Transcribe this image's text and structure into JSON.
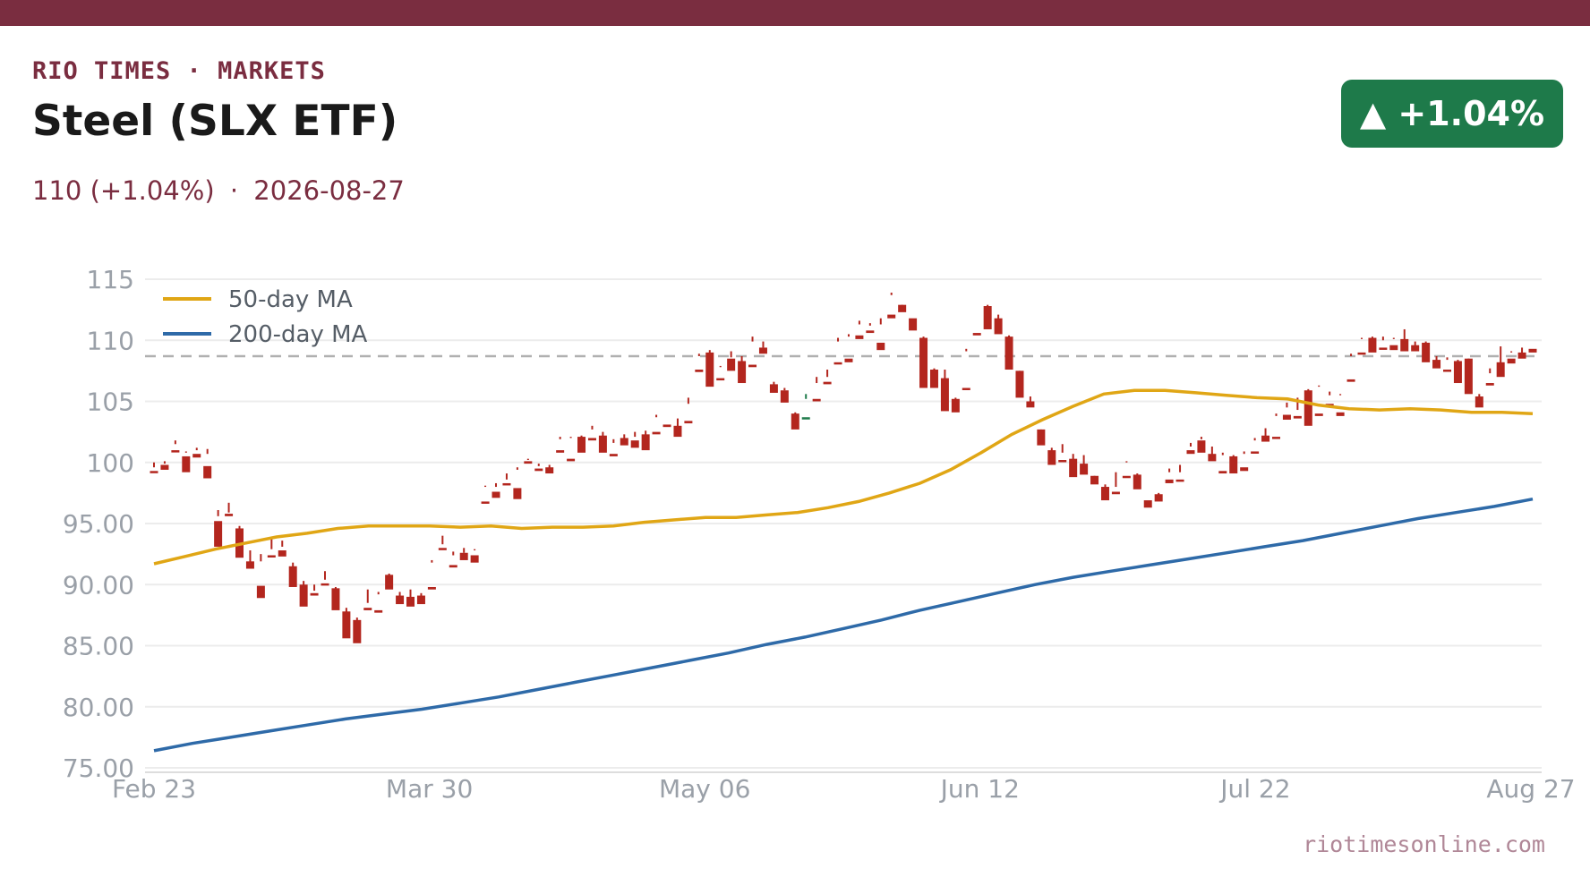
{
  "header": {
    "brand": "RIO TIMES · MARKETS",
    "title": "Steel (SLX ETF)",
    "price": "110",
    "change": "(+1.04%)",
    "separator": "·",
    "date": "2026-08-27",
    "badge": "▲ +1.04%"
  },
  "footer": {
    "source": "riotimesonline.com"
  },
  "colors": {
    "up": "#1e7a4a",
    "down": "#b3261e",
    "ma50": "#e0a615",
    "ma200": "#2e6aa8",
    "brand": "#7a2d40"
  },
  "chart_data": {
    "type": "candlestick",
    "ylim": [
      75,
      115
    ],
    "y_ticks": [
      "75.00",
      "80.00",
      "85.00",
      "90.00",
      "95.00",
      "100",
      "105",
      "110",
      "115"
    ],
    "x_ticks": [
      "Feb 23",
      "Mar 30",
      "May 06",
      "Jun 12",
      "Jul 22",
      "Aug 27"
    ],
    "reference_line": 108.7,
    "legend": [
      "50-day MA",
      "200-day MA"
    ],
    "candles": [
      [
        99.3,
        100,
        99.6,
        99.2
      ],
      [
        99.8,
        100.1,
        99.9,
        99.4
      ],
      [
        101.0,
        101.8,
        101.5,
        100.9
      ],
      [
        100.5,
        100.9,
        100.8,
        99.2
      ],
      [
        100.7,
        101.2,
        101.0,
        100.4
      ],
      [
        99.7,
        101.1,
        100.7,
        98.7
      ],
      [
        95.2,
        96.1,
        95.6,
        93.1
      ],
      [
        95.8,
        96.7,
        95.9,
        95.6
      ],
      [
        94.6,
        94.8,
        93.3,
        92.2
      ],
      [
        91.9,
        92.8,
        91.4,
        91.3
      ],
      [
        89.9,
        92.5,
        91.9,
        88.9
      ],
      [
        92.4,
        93.9,
        92.9,
        92.3
      ],
      [
        92.8,
        93.6,
        93.1,
        92.3
      ],
      [
        91.5,
        91.8,
        90.2,
        89.8
      ],
      [
        90.0,
        90.3,
        88.4,
        88.2
      ],
      [
        89.3,
        90.0,
        89.5,
        89.1
      ],
      [
        90.1,
        91.1,
        90.4,
        90.0
      ],
      [
        89.7,
        89.8,
        88.2,
        87.9
      ],
      [
        87.8,
        88.1,
        86.1,
        85.6
      ],
      [
        87.1,
        87.3,
        85.7,
        85.2
      ],
      [
        88.1,
        89.6,
        88.5,
        87.9
      ],
      [
        87.9,
        89.4,
        89.2,
        87.7
      ],
      [
        90.8,
        90.9,
        89.8,
        89.6
      ],
      [
        89.1,
        89.4,
        88.5,
        88.4
      ],
      [
        89.0,
        89.6,
        88.8,
        88.2
      ],
      [
        89.1,
        89.3,
        88.6,
        88.4
      ],
      [
        89.8,
        92.0,
        91.8,
        89.6
      ],
      [
        93.0,
        94.0,
        93.3,
        92.9
      ],
      [
        91.6,
        92.7,
        92.4,
        91.4
      ],
      [
        92.6,
        93.0,
        92.6,
        92.0
      ],
      [
        92.4,
        92.9,
        92.8,
        91.8
      ],
      [
        96.8,
        98.1,
        98.0,
        96.7
      ],
      [
        97.6,
        98.3,
        98.0,
        97.1
      ],
      [
        98.3,
        99.1,
        98.6,
        98.2
      ],
      [
        97.9,
        99.6,
        99.4,
        97.0
      ],
      [
        100.1,
        100.3,
        100.2,
        99.9
      ],
      [
        99.5,
        99.9,
        99.7,
        99.3
      ],
      [
        99.6,
        99.8,
        99.2,
        99.1
      ],
      [
        101.0,
        102.1,
        101.9,
        100.8
      ],
      [
        100.3,
        102.1,
        102.0,
        100.1
      ],
      [
        102.1,
        102.2,
        100.9,
        100.8
      ],
      [
        102.0,
        103.0,
        102.7,
        101.8
      ],
      [
        102.2,
        102.5,
        101.2,
        100.8
      ],
      [
        100.7,
        101.9,
        101.6,
        100.5
      ],
      [
        102.0,
        102.3,
        101.6,
        101.4
      ],
      [
        101.8,
        102.5,
        102.1,
        101.2
      ],
      [
        102.3,
        102.6,
        101.1,
        101.0
      ],
      [
        102.5,
        103.9,
        103.7,
        102.3
      ],
      [
        103.1,
        103.3,
        103.3,
        102.9
      ],
      [
        103.0,
        103.6,
        102.3,
        102.1
      ],
      [
        103.4,
        105.3,
        104.8,
        103.2
      ],
      [
        107.6,
        108.9,
        108.7,
        107.4
      ],
      [
        109.0,
        109.2,
        106.6,
        106.2
      ],
      [
        106.9,
        107.9,
        107.8,
        106.8
      ],
      [
        108.5,
        109.1,
        108.6,
        107.5
      ],
      [
        108.3,
        108.7,
        107.7,
        106.5
      ],
      [
        108.0,
        110.3,
        109.9,
        107.8
      ],
      [
        109.4,
        109.9,
        109.4,
        108.9
      ],
      [
        106.4,
        106.6,
        105.8,
        105.7
      ],
      [
        105.9,
        106.1,
        105.9,
        104.9
      ],
      [
        104.0,
        104.1,
        103.4,
        102.7
      ],
      [
        103.7,
        105.6,
        105.2,
        103.7
      ],
      [
        105.2,
        107.0,
        106.5,
        105.0
      ],
      [
        106.6,
        107.6,
        107.0,
        106.4
      ],
      [
        108.2,
        110.2,
        109.9,
        108.1
      ],
      [
        108.5,
        110.5,
        110.3,
        108.2
      ],
      [
        110.4,
        111.6,
        111.3,
        110.1
      ],
      [
        110.8,
        111.4,
        111.2,
        110.6
      ],
      [
        109.8,
        111.8,
        111.3,
        109.2
      ],
      [
        112.1,
        113.9,
        113.7,
        111.8
      ],
      [
        112.9,
        112.9,
        112.4,
        112.3
      ],
      [
        111.8,
        111.9,
        111.9,
        110.8
      ],
      [
        110.2,
        110.3,
        106.7,
        106.1
      ],
      [
        107.6,
        107.7,
        106.3,
        106.1
      ],
      [
        106.9,
        107.6,
        106.3,
        104.2
      ],
      [
        105.2,
        105.3,
        104.2,
        104.1
      ],
      [
        106.1,
        109.3,
        109.1,
        106.0
      ],
      [
        110.6,
        111.5,
        111.5,
        110.4
      ],
      [
        112.8,
        112.9,
        111.0,
        110.9
      ],
      [
        111.8,
        112.1,
        110.7,
        110.5
      ],
      [
        110.3,
        110.4,
        107.8,
        107.6
      ],
      [
        107.5,
        107.5,
        105.5,
        105.3
      ],
      [
        105.0,
        105.4,
        104.8,
        104.5
      ],
      [
        102.7,
        102.7,
        102.0,
        101.4
      ],
      [
        101.0,
        101.2,
        100.0,
        99.8
      ],
      [
        100.2,
        101.5,
        100.8,
        100.1
      ],
      [
        100.3,
        100.7,
        98.9,
        98.8
      ],
      [
        99.9,
        100.6,
        99.2,
        99.0
      ],
      [
        98.9,
        98.9,
        98.4,
        98.2
      ],
      [
        98.0,
        98.2,
        97.2,
        96.9
      ],
      [
        97.6,
        99.2,
        98.0,
        97.4
      ],
      [
        98.9,
        100.1,
        100.0,
        98.8
      ],
      [
        99.0,
        99.1,
        98.3,
        97.8
      ],
      [
        96.9,
        97.6,
        97.6,
        96.3
      ],
      [
        97.4,
        97.5,
        97.0,
        96.8
      ],
      [
        98.6,
        99.5,
        99.2,
        98.3
      ],
      [
        98.6,
        99.8,
        99.2,
        98.5
      ],
      [
        101.0,
        101.6,
        101.3,
        100.7
      ],
      [
        101.8,
        102.1,
        101.9,
        100.8
      ],
      [
        100.7,
        101.3,
        100.4,
        100.1
      ],
      [
        99.3,
        100.8,
        100.6,
        99.1
      ],
      [
        100.5,
        100.6,
        99.3,
        99.1
      ],
      [
        99.6,
        100.9,
        100.7,
        99.3
      ],
      [
        100.9,
        102.0,
        101.8,
        100.8
      ],
      [
        102.2,
        102.8,
        101.9,
        101.7
      ],
      [
        102.1,
        104.0,
        103.8,
        102.0
      ],
      [
        103.9,
        104.9,
        104.5,
        103.5
      ],
      [
        103.8,
        105.3,
        104.3,
        103.6
      ],
      [
        105.9,
        106.0,
        103.6,
        103.0
      ],
      [
        104.0,
        106.3,
        106.2,
        103.8
      ],
      [
        104.8,
        105.8,
        105.5,
        104.6
      ],
      [
        104.1,
        105.6,
        105.5,
        103.8
      ],
      [
        106.8,
        108.9,
        108.7,
        106.6
      ],
      [
        109.0,
        110.2,
        110.1,
        108.9
      ],
      [
        110.2,
        110.3,
        109.1,
        109.0
      ],
      [
        109.4,
        110.3,
        110.0,
        109.3
      ],
      [
        109.6,
        110.2,
        110.1,
        109.2
      ],
      [
        110.1,
        110.9,
        109.3,
        109.1
      ],
      [
        109.6,
        109.9,
        109.3,
        109.1
      ],
      [
        109.8,
        109.9,
        108.4,
        108.2
      ],
      [
        108.4,
        108.7,
        108.1,
        107.7
      ],
      [
        107.6,
        108.6,
        108.4,
        107.5
      ],
      [
        108.3,
        108.4,
        106.7,
        106.5
      ],
      [
        108.5,
        108.5,
        106.8,
        105.6
      ],
      [
        105.4,
        105.6,
        104.8,
        104.5
      ],
      [
        106.5,
        107.7,
        107.3,
        106.3
      ],
      [
        108.2,
        109.5,
        107.4,
        107.0
      ],
      [
        108.5,
        109.1,
        109.0,
        108.1
      ],
      [
        109.0,
        109.4,
        108.6,
        108.5
      ],
      [
        109.3,
        110.1,
        110.1,
        109.0
      ]
    ],
    "series": [
      {
        "name": "50-day MA",
        "values": [
          91.7,
          92.3,
          92.9,
          93.4,
          93.9,
          94.2,
          94.6,
          94.8,
          94.8,
          94.8,
          94.7,
          94.8,
          94.6,
          94.7,
          94.7,
          94.8,
          95.1,
          95.3,
          95.5,
          95.5,
          95.7,
          95.9,
          96.3,
          96.8,
          97.5,
          98.3,
          99.4,
          100.8,
          102.3,
          103.5,
          104.6,
          105.6,
          105.9,
          105.9,
          105.7,
          105.5,
          105.3,
          105.2,
          104.7,
          104.4,
          104.3,
          104.4,
          104.3,
          104.1,
          104.1,
          104.0
        ]
      },
      {
        "name": "200-day MA",
        "values": [
          76.4,
          77.0,
          77.5,
          78.0,
          78.5,
          79.0,
          79.4,
          79.8,
          80.3,
          80.8,
          81.4,
          82.0,
          82.6,
          83.2,
          83.8,
          84.4,
          85.1,
          85.7,
          86.4,
          87.1,
          87.9,
          88.6,
          89.3,
          90.0,
          90.6,
          91.1,
          91.6,
          92.1,
          92.6,
          93.1,
          93.6,
          94.2,
          94.8,
          95.4,
          95.9,
          96.4,
          97.0
        ]
      }
    ]
  }
}
